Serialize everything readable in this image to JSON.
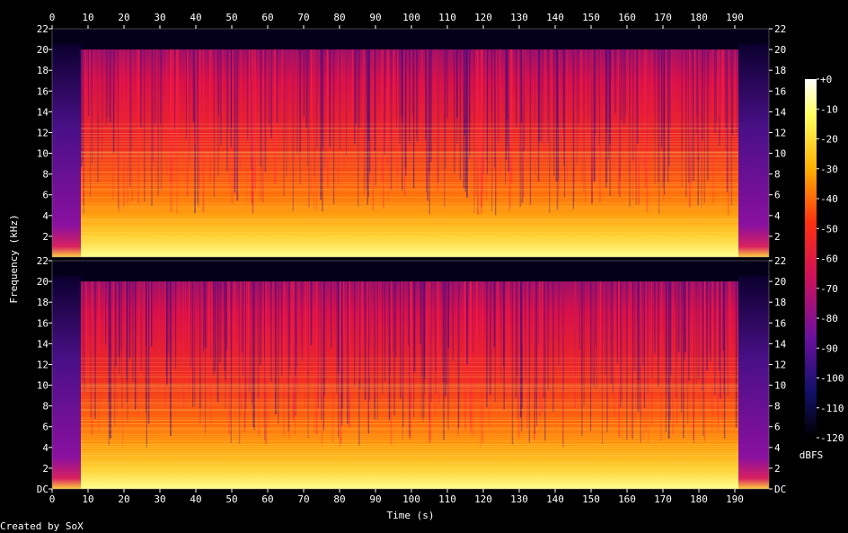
{
  "chart_data": {
    "type": "spectrogram",
    "x_label": "Time (s)",
    "y_label": "Frequency (kHz)",
    "footer": "Created by SoX",
    "xlim": [
      0,
      199.5
    ],
    "xticks": [
      0,
      10,
      20,
      30,
      40,
      50,
      60,
      70,
      80,
      90,
      100,
      110,
      120,
      130,
      140,
      150,
      160,
      170,
      180,
      190
    ],
    "panels": [
      {
        "ylim": [
          0,
          22
        ],
        "yticks": [
          2,
          4,
          6,
          8,
          10,
          12,
          14,
          16,
          18,
          20,
          22
        ]
      },
      {
        "ylim": [
          0,
          22
        ],
        "yticks": [
          {
            "value": 0,
            "label": "DC"
          },
          2,
          4,
          6,
          8,
          10,
          12,
          14,
          16,
          18,
          20,
          22
        ]
      }
    ],
    "colorbar": {
      "label": "dBFS",
      "lim": [
        -120,
        0
      ],
      "ticks": [
        {
          "value": 0,
          "label": "+0"
        },
        -10,
        -20,
        -30,
        -40,
        -50,
        -60,
        -70,
        -80,
        -90,
        -100,
        -110,
        -120
      ]
    }
  }
}
